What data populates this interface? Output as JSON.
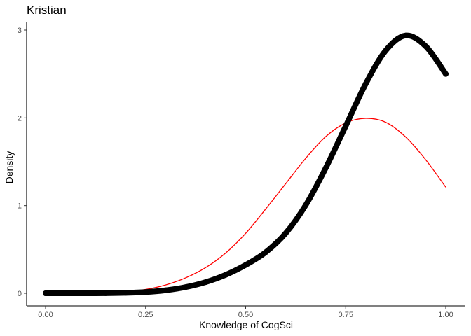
{
  "chart_data": {
    "type": "line",
    "title": "Kristian",
    "xlabel": "Knowledge of CogSci",
    "ylabel": "Density",
    "xlim": [
      0,
      1
    ],
    "ylim": [
      0,
      3
    ],
    "x_ticks": [
      0,
      0.25,
      0.5,
      0.75,
      1
    ],
    "x_tick_labels": [
      "0.00",
      "0.25",
      "0.50",
      "0.75",
      "1.00"
    ],
    "y_ticks": [
      0,
      1,
      2,
      3
    ],
    "y_tick_labels": [
      "0",
      "1",
      "2",
      "3"
    ],
    "grid": false,
    "legend": "none",
    "series": [
      {
        "style": "thick points",
        "color": "#000000",
        "x": [
          0.0,
          0.05,
          0.1,
          0.15,
          0.2,
          0.25,
          0.3,
          0.35,
          0.4,
          0.45,
          0.5,
          0.55,
          0.6,
          0.65,
          0.7,
          0.75,
          0.8,
          0.85,
          0.9,
          0.95,
          1.0
        ],
        "y": [
          0.0,
          0.0,
          0.0,
          0.001,
          0.005,
          0.014,
          0.034,
          0.07,
          0.127,
          0.21,
          0.323,
          0.468,
          0.685,
          1.005,
          1.428,
          1.907,
          2.388,
          2.767,
          2.938,
          2.815,
          2.5
        ]
      },
      {
        "style": "line",
        "color": "#ff0000",
        "x": [
          0.0,
          0.05,
          0.1,
          0.15,
          0.2,
          0.25,
          0.3,
          0.35,
          0.4,
          0.45,
          0.5,
          0.55,
          0.6,
          0.65,
          0.7,
          0.75,
          0.8,
          0.85,
          0.9,
          0.95,
          1.0
        ],
        "y": [
          0.0,
          0.0,
          0.001,
          0.005,
          0.017,
          0.044,
          0.095,
          0.176,
          0.293,
          0.459,
          0.684,
          0.961,
          1.25,
          1.539,
          1.786,
          1.942,
          1.995,
          1.95,
          1.781,
          1.522,
          1.21
        ]
      }
    ]
  }
}
